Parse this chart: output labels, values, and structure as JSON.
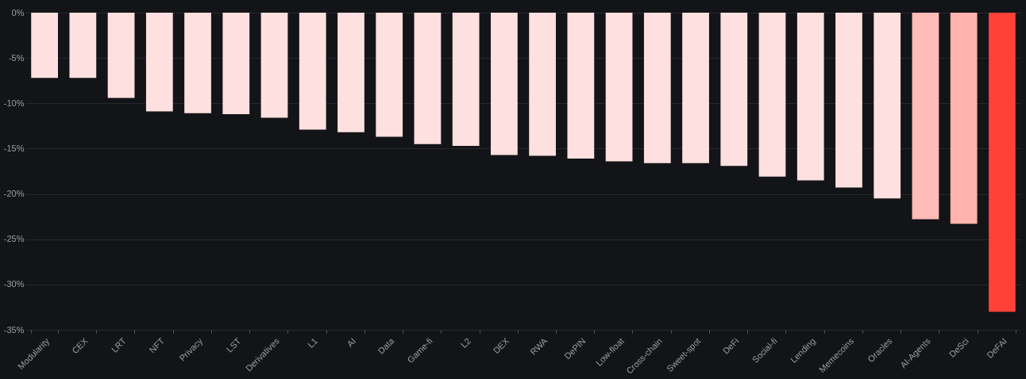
{
  "chart_data": {
    "type": "bar",
    "categories": [
      "Modularity",
      "CEX",
      "LRT",
      "NFT",
      "Privacy",
      "LST",
      "Derivatives",
      "L1",
      "AI",
      "Data",
      "Game-fi",
      "L2",
      "DEX",
      "RWA",
      "DePIN",
      "Low-float",
      "Cross-chain",
      "Sweet-spot",
      "DeFi",
      "Social-fi",
      "Lending",
      "Memecoins",
      "Oracles",
      "AI-Agents",
      "DeSci",
      "DeFAI"
    ],
    "values": [
      -7.2,
      -7.2,
      -9.4,
      -10.9,
      -11.1,
      -11.2,
      -11.6,
      -12.9,
      -13.2,
      -13.7,
      -14.5,
      -14.7,
      -15.7,
      -15.8,
      -16.1,
      -16.4,
      -16.6,
      -16.6,
      -16.9,
      -18.1,
      -18.5,
      -19.3,
      -20.5,
      -22.8,
      -23.3,
      -33.0
    ],
    "colors": [
      "#fde0df",
      "#fde0df",
      "#fde0df",
      "#fde0df",
      "#fde0df",
      "#fde0df",
      "#fde0df",
      "#fde0df",
      "#fde0df",
      "#fde0df",
      "#fde0df",
      "#fde0df",
      "#fde0df",
      "#fde0df",
      "#fde0df",
      "#fde0df",
      "#fde0df",
      "#fde0df",
      "#fde0df",
      "#fde0df",
      "#fde0df",
      "#fde0df",
      "#fde0df",
      "#ffbbb7",
      "#ffb2ae",
      "#ff4138"
    ],
    "ylim": [
      -35,
      0
    ],
    "yticks": [
      {
        "value": 0,
        "label": "0%"
      },
      {
        "value": -5,
        "label": "-5%"
      },
      {
        "value": -10,
        "label": "-10%"
      },
      {
        "value": -15,
        "label": "-15%"
      },
      {
        "value": -20,
        "label": "-20%"
      },
      {
        "value": -25,
        "label": "-25%"
      },
      {
        "value": -30,
        "label": "-30%"
      },
      {
        "value": -35,
        "label": "-35%"
      }
    ],
    "grid": "y"
  }
}
